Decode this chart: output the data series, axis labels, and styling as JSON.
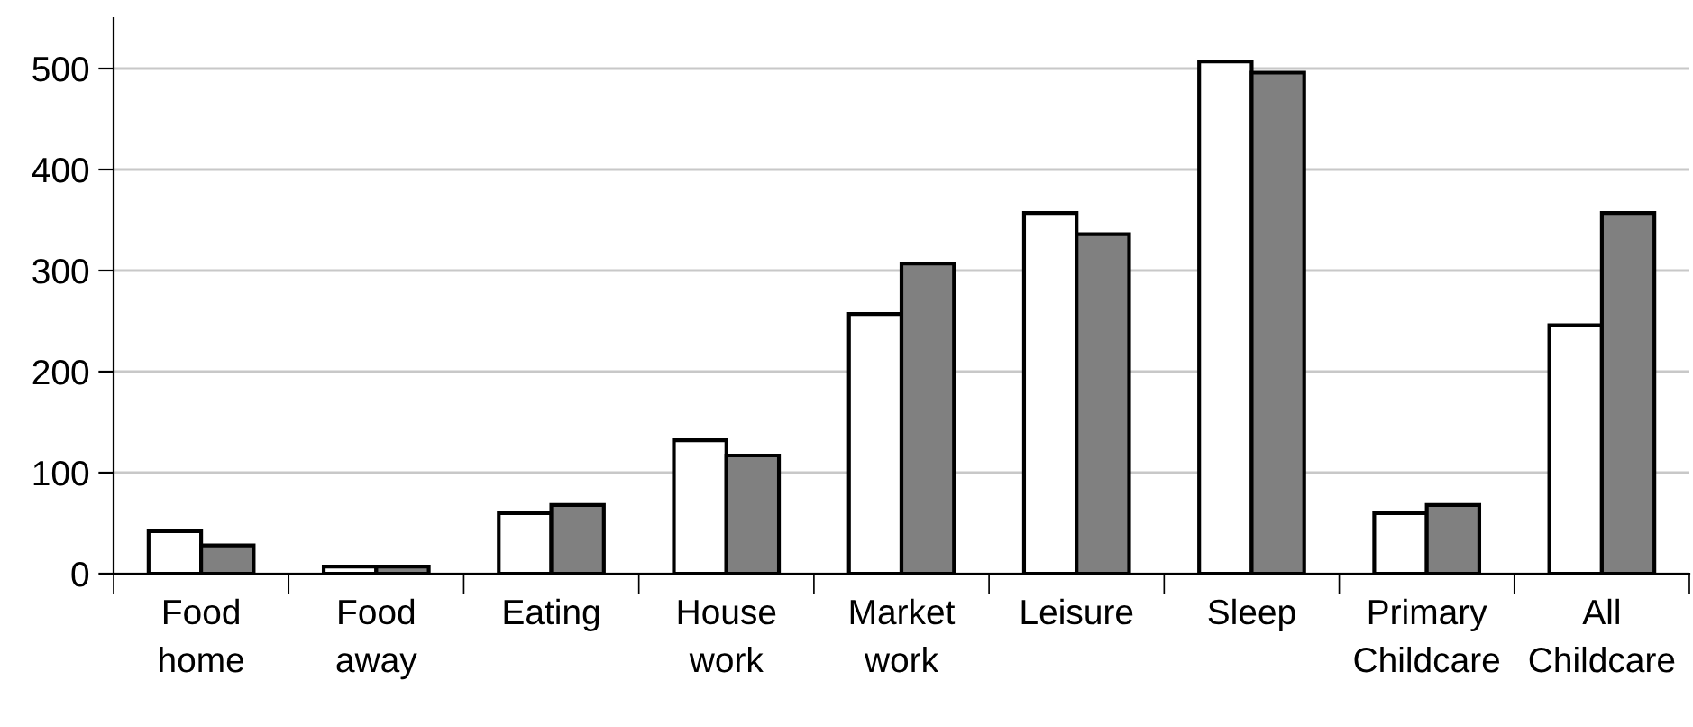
{
  "chart_data": {
    "type": "bar",
    "categories": [
      "Food\nhome",
      "Food\naway",
      "Eating",
      "House\nwork",
      "Market\nwork",
      "Leisure",
      "Sleep",
      "Primary\nChildcare",
      "All\nChildcare"
    ],
    "series": [
      {
        "color": "#ffffff",
        "values": [
          42,
          7,
          60,
          132,
          257,
          357,
          507,
          60,
          246
        ]
      },
      {
        "color": "#808080",
        "values": [
          28,
          7,
          68,
          117,
          307,
          336,
          496,
          68,
          357
        ]
      }
    ],
    "ylim": [
      0,
      550
    ],
    "yticks": [
      0,
      100,
      200,
      300,
      400,
      500
    ],
    "grid": "y",
    "legend": false
  }
}
